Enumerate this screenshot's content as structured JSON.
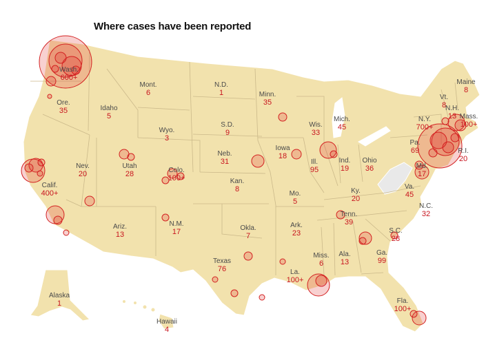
{
  "title": "Where cases have been reported",
  "colors": {
    "land": "#f2e2ad",
    "bubble_stroke": "#d32020",
    "bubble_fill": "rgba(225,40,40,0.22)",
    "count_text": "#c8141e",
    "no_data": "#e9e9e9"
  },
  "states": [
    {
      "name": "Wash.",
      "count": "600+"
    },
    {
      "name": "Mont.",
      "count": "6"
    },
    {
      "name": "N.D.",
      "count": "1"
    },
    {
      "name": "Minn.",
      "count": "35"
    },
    {
      "name": "Maine",
      "count": "8"
    },
    {
      "name": "Ore.",
      "count": "35"
    },
    {
      "name": "Idaho",
      "count": "5"
    },
    {
      "name": "S.D.",
      "count": "9"
    },
    {
      "name": "Wis.",
      "count": "33"
    },
    {
      "name": "Mich.",
      "count": "45"
    },
    {
      "name": "Vt.",
      "count": "8"
    },
    {
      "name": "N.H.",
      "count": "13"
    },
    {
      "name": "Mass.",
      "count": "100+"
    },
    {
      "name": "N.Y.",
      "count": "700+"
    },
    {
      "name": "Wyo.",
      "count": "3"
    },
    {
      "name": "Iowa",
      "count": "18"
    },
    {
      "name": "Neb.",
      "count": "31"
    },
    {
      "name": "Nev.",
      "count": "20"
    },
    {
      "name": "Utah",
      "count": "28"
    },
    {
      "name": "Colo.",
      "count": "100+"
    },
    {
      "name": "Ill.",
      "count": "95"
    },
    {
      "name": "Ind.",
      "count": "19"
    },
    {
      "name": "Ohio",
      "count": "36"
    },
    {
      "name": "Pa.",
      "count": "69"
    },
    {
      "name": "R.I.",
      "count": "20"
    },
    {
      "name": "Md.",
      "count": "17"
    },
    {
      "name": "Calif.",
      "count": "400+"
    },
    {
      "name": "Kan.",
      "count": "8"
    },
    {
      "name": "Mo.",
      "count": "5"
    },
    {
      "name": "Ky.",
      "count": "20"
    },
    {
      "name": "Va.",
      "count": "45"
    },
    {
      "name": "N.C.",
      "count": "32"
    },
    {
      "name": "Ariz.",
      "count": "13"
    },
    {
      "name": "N.M.",
      "count": "17"
    },
    {
      "name": "Okla.",
      "count": "7"
    },
    {
      "name": "Ark.",
      "count": "23"
    },
    {
      "name": "Tenn.",
      "count": "39"
    },
    {
      "name": "S.C.",
      "count": "28"
    },
    {
      "name": "Texas",
      "count": "76"
    },
    {
      "name": "Miss.",
      "count": "6"
    },
    {
      "name": "Ala.",
      "count": "13"
    },
    {
      "name": "Ga.",
      "count": "99"
    },
    {
      "name": "La.",
      "count": "100+"
    },
    {
      "name": "Fla.",
      "count": "100+"
    },
    {
      "name": "Alaska",
      "count": "1"
    },
    {
      "name": "Hawaii",
      "count": "4"
    }
  ]
}
